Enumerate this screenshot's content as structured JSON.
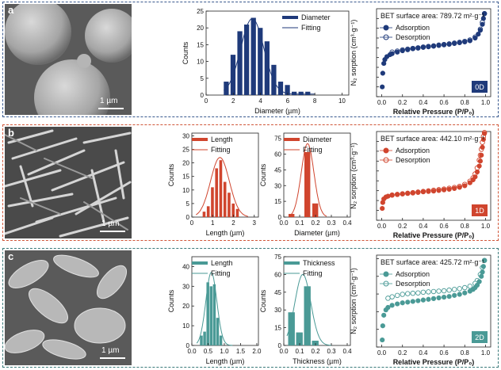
{
  "rows": [
    {
      "letter": "a",
      "scale_label": "1 µm",
      "border_color": "#3a5a8f"
    },
    {
      "letter": "b",
      "scale_label": "1 µm",
      "border_color": "#d0573a"
    },
    {
      "letter": "c",
      "scale_label": "1 µm",
      "border_color": "#3a7a7a"
    }
  ],
  "colors": {
    "blue": "#1f3a7a",
    "red": "#d0452e",
    "teal": "#4a9a96"
  },
  "chart_data": [
    {
      "type": "bar",
      "xlabel": "Diameter (µm)",
      "ylabel": "Counts",
      "xlim": [
        0,
        10.5
      ],
      "ylim": [
        0,
        25
      ],
      "xticks": [
        0,
        2,
        4,
        6,
        8,
        10
      ],
      "yticks": [
        0,
        5,
        10,
        15,
        20,
        25
      ],
      "bar_width": 0.4,
      "x": [
        1.5,
        2,
        2.5,
        3,
        3.5,
        4,
        4.5,
        5,
        5.5,
        6,
        6.5,
        7,
        7.5
      ],
      "values": [
        4,
        12,
        19,
        21,
        23,
        20,
        16,
        9,
        4,
        3,
        1,
        1,
        1
      ],
      "fit": {
        "mu": 3.4,
        "sigma": 0.85,
        "amp": 22.5,
        "baseline": 0.3,
        "from": 1.3,
        "to": 8.0
      },
      "legend": [
        "Diameter",
        "Fitting"
      ],
      "color": "#1f3a7a"
    },
    {
      "type": "line",
      "title": "BET surface area: 789.72 m²·g⁻¹",
      "xlabel": "Relative Pressure (P/P₀)",
      "ylabel": "N₂ sorption (cm³·g⁻¹)",
      "xlim": [
        -0.05,
        1.05
      ],
      "ylim": [
        0,
        450
      ],
      "xticks": [
        0.0,
        0.2,
        0.4,
        0.6,
        0.8,
        1.0
      ],
      "yticks": [
        0,
        50,
        100,
        150,
        200,
        250,
        300,
        350,
        400
      ],
      "series": [
        {
          "name": "Adsorption",
          "x": [
            0.005,
            0.01,
            0.02,
            0.03,
            0.05,
            0.08,
            0.1,
            0.15,
            0.2,
            0.25,
            0.3,
            0.35,
            0.4,
            0.45,
            0.5,
            0.55,
            0.6,
            0.65,
            0.7,
            0.75,
            0.8,
            0.85,
            0.9,
            0.93,
            0.95,
            0.97,
            0.98,
            0.99
          ],
          "y": [
            50,
            120,
            170,
            190,
            205,
            215,
            220,
            228,
            235,
            240,
            245,
            248,
            252,
            255,
            258,
            262,
            265,
            268,
            272,
            276,
            280,
            286,
            300,
            320,
            340,
            370,
            400,
            425
          ]
        },
        {
          "name": "Desorption",
          "x": [
            0.99,
            0.97,
            0.95,
            0.9,
            0.85,
            0.8,
            0.75,
            0.7,
            0.65,
            0.6,
            0.55,
            0.5,
            0.45,
            0.4,
            0.35,
            0.3,
            0.25,
            0.2,
            0.15,
            0.1
          ],
          "y": [
            425,
            380,
            345,
            305,
            290,
            283,
            278,
            274,
            270,
            267,
            264,
            260,
            257,
            254,
            250,
            247,
            243,
            239,
            233,
            228
          ]
        }
      ],
      "badge": "0D",
      "color": "#1f3a7a"
    },
    {
      "type": "bar",
      "xlabel": "Length (µm)",
      "ylabel": "Counts",
      "xlim": [
        0,
        3.2
      ],
      "ylim": [
        0,
        31
      ],
      "xticks": [
        0,
        1,
        2,
        3
      ],
      "yticks": [
        0,
        5,
        10,
        15,
        20,
        25,
        30
      ],
      "bar_width": 0.16,
      "x": [
        0.6,
        0.8,
        1.0,
        1.2,
        1.4,
        1.6,
        1.8,
        2.0,
        2.2
      ],
      "values": [
        2,
        4,
        11,
        18,
        21,
        13,
        9,
        5,
        3
      ],
      "fit": {
        "mu": 1.35,
        "sigma": 0.45,
        "amp": 22,
        "baseline": 0,
        "from": 0.2,
        "to": 2.7
      },
      "legend": [
        "Length",
        "Fitting"
      ],
      "color": "#d0452e"
    },
    {
      "type": "bar",
      "xlabel": "Diameter (µm)",
      "ylabel": "Counts",
      "xlim": [
        0,
        0.42
      ],
      "ylim": [
        0,
        80
      ],
      "xticks": [
        0.0,
        0.1,
        0.2,
        0.3,
        0.4
      ],
      "yticks": [
        0,
        15,
        30,
        45,
        60,
        75
      ],
      "bar_width": 0.04,
      "x": [
        0.05,
        0.15,
        0.2
      ],
      "values": [
        3,
        62,
        13
      ],
      "fit": {
        "mu": 0.15,
        "sigma": 0.04,
        "amp": 70,
        "baseline": 0,
        "from": 0.04,
        "to": 0.27
      },
      "legend": [
        "Diameter",
        "Fitting"
      ],
      "color": "#d0452e"
    },
    {
      "type": "line",
      "title": "BET surface area: 442.10 m²·g⁻¹",
      "xlabel": "Relative Pressure (P/P₀)",
      "ylabel": "N₂ sorption (cm³·g⁻¹)",
      "xlim": [
        -0.05,
        1.05
      ],
      "ylim": [
        0,
        450
      ],
      "xticks": [
        0.0,
        0.2,
        0.4,
        0.6,
        0.8,
        1.0
      ],
      "yticks": [
        0,
        50,
        100,
        150,
        200,
        250,
        300,
        350,
        400
      ],
      "series": [
        {
          "name": "Adsorption",
          "x": [
            0.005,
            0.01,
            0.02,
            0.04,
            0.06,
            0.1,
            0.15,
            0.2,
            0.25,
            0.3,
            0.35,
            0.4,
            0.45,
            0.5,
            0.55,
            0.6,
            0.65,
            0.7,
            0.75,
            0.8,
            0.85,
            0.88,
            0.9,
            0.92,
            0.94,
            0.95,
            0.96,
            0.97,
            0.98,
            0.99
          ],
          "y": [
            60,
            90,
            108,
            118,
            122,
            127,
            131,
            134,
            136,
            138,
            141,
            144,
            146,
            148,
            151,
            154,
            157,
            161,
            167,
            175,
            190,
            205,
            220,
            245,
            275,
            300,
            330,
            370,
            410,
            440
          ]
        },
        {
          "name": "Desorption",
          "x": [
            0.99,
            0.98,
            0.97,
            0.96,
            0.95,
            0.94,
            0.92,
            0.9,
            0.88,
            0.85,
            0.8,
            0.75,
            0.7,
            0.65,
            0.6,
            0.55,
            0.5,
            0.45,
            0.4,
            0.35,
            0.3,
            0.25,
            0.2,
            0.15,
            0.1
          ],
          "y": [
            445,
            425,
            395,
            360,
            330,
            305,
            265,
            235,
            215,
            198,
            182,
            172,
            166,
            162,
            158,
            155,
            152,
            149,
            146,
            143,
            140,
            137,
            134,
            131,
            128
          ]
        }
      ],
      "badge": "1D",
      "color": "#d0452e"
    },
    {
      "type": "bar",
      "xlabel": "Length (µm)",
      "ylabel": "Counts",
      "xlim": [
        0,
        2.05
      ],
      "ylim": [
        0,
        45
      ],
      "xticks": [
        0.0,
        0.5,
        1.0,
        1.5,
        2.0
      ],
      "yticks": [
        0,
        10,
        20,
        30,
        40
      ],
      "bar_width": 0.1,
      "x": [
        0.3,
        0.4,
        0.5,
        0.6,
        0.7,
        0.8,
        0.9
      ],
      "values": [
        5,
        7,
        32,
        30,
        31,
        14,
        5
      ],
      "fit": {
        "mu": 0.6,
        "sigma": 0.17,
        "amp": 37,
        "baseline": 0,
        "from": 0.15,
        "to": 1.25
      },
      "legend": [
        "Length",
        "Fitting"
      ],
      "color": "#4a9a96"
    },
    {
      "type": "bar",
      "xlabel": "Thickness (µm)",
      "ylabel": "Counts",
      "xlim": [
        0,
        0.42
      ],
      "ylim": [
        0,
        75
      ],
      "xticks": [
        0.0,
        0.1,
        0.2,
        0.3,
        0.4
      ],
      "yticks": [
        0,
        15,
        30,
        45,
        60,
        75
      ],
      "bar_width": 0.045,
      "x": [
        0.05,
        0.1,
        0.15,
        0.2
      ],
      "values": [
        28,
        11,
        50,
        4
      ],
      "fit": {
        "mu": 0.12,
        "sigma": 0.05,
        "amp": 60,
        "baseline": 0,
        "from": 0.02,
        "to": 0.3
      },
      "legend": [
        "Thickness",
        "Fitting"
      ],
      "color": "#4a9a96"
    },
    {
      "type": "line",
      "title": "BET surface area: 425.72 m²·g⁻¹",
      "xlabel": "Relative Pressure (P/P₀)",
      "ylabel": "N₂ sorption (cm³·g⁻¹)",
      "xlim": [
        -0.05,
        1.05
      ],
      "ylim": [
        0,
        260
      ],
      "xticks": [
        0.0,
        0.2,
        0.4,
        0.6,
        0.8,
        1.0
      ],
      "yticks": [
        0,
        50,
        100,
        150,
        200,
        250
      ],
      "series": [
        {
          "name": "Adsorption",
          "x": [
            0.005,
            0.01,
            0.02,
            0.04,
            0.06,
            0.1,
            0.15,
            0.2,
            0.25,
            0.3,
            0.35,
            0.4,
            0.45,
            0.5,
            0.55,
            0.6,
            0.65,
            0.7,
            0.75,
            0.8,
            0.85,
            0.88,
            0.9,
            0.92,
            0.94,
            0.96,
            0.97,
            0.98,
            0.99
          ],
          "y": [
            20,
            60,
            90,
            105,
            112,
            118,
            122,
            125,
            127,
            129,
            131,
            133,
            135,
            137,
            139,
            141,
            143,
            146,
            149,
            153,
            158,
            163,
            168,
            175,
            185,
            200,
            212,
            228,
            245
          ]
        },
        {
          "name": "Desorption",
          "x": [
            0.99,
            0.97,
            0.95,
            0.92,
            0.9,
            0.85,
            0.8,
            0.75,
            0.7,
            0.65,
            0.6,
            0.55,
            0.5,
            0.45,
            0.4,
            0.35,
            0.3,
            0.25,
            0.2,
            0.15,
            0.1,
            0.06
          ],
          "y": [
            245,
            225,
            205,
            188,
            180,
            172,
            168,
            165,
            163,
            161,
            159,
            158,
            157,
            156,
            155,
            153,
            152,
            151,
            149,
            146,
            142,
            138
          ]
        }
      ],
      "badge": "2D",
      "color": "#4a9a96"
    }
  ]
}
